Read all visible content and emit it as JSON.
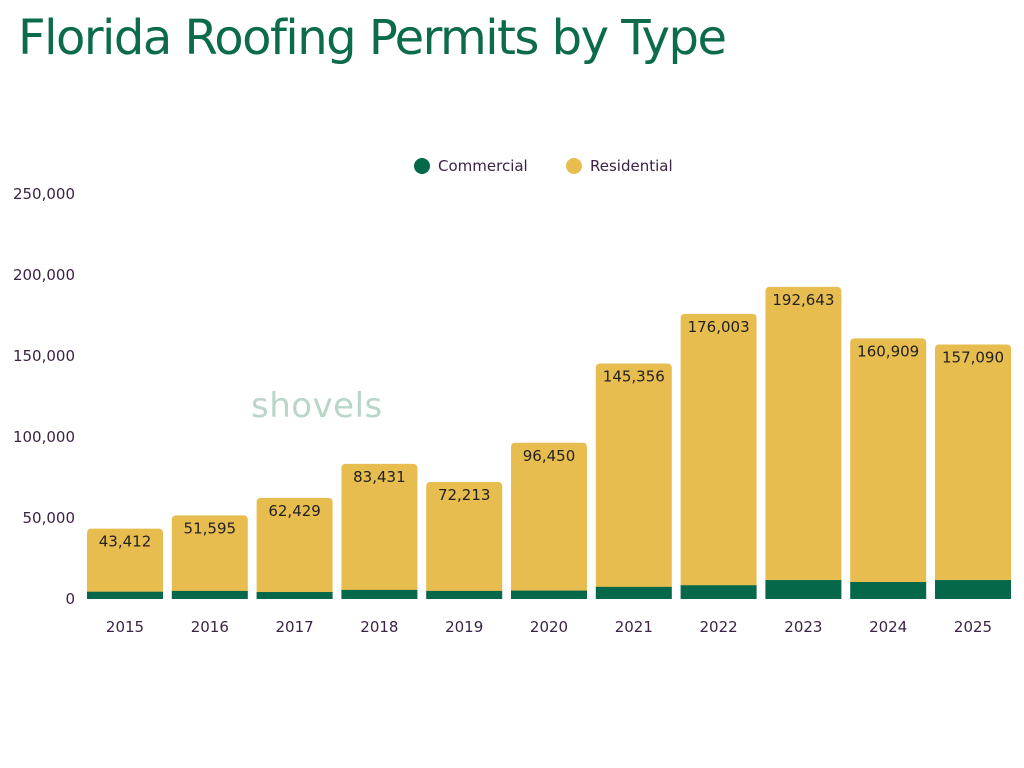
{
  "title": "Florida Roofing Permits by Type",
  "watermark": "shovels",
  "colors": {
    "commercial": "#05684a",
    "residential": "#e8bd50",
    "title": "#0b6b4b",
    "axis_text": "#3b2346",
    "watermark": "#b9d6c8"
  },
  "chart_data": {
    "type": "bar",
    "stacked": true,
    "categories": [
      "2015",
      "2016",
      "2017",
      "2018",
      "2019",
      "2020",
      "2021",
      "2022",
      "2023",
      "2024",
      "2025"
    ],
    "series": [
      {
        "name": "Commercial",
        "values": [
          4500,
          5000,
          4300,
          5600,
          5000,
          5200,
          7500,
          8500,
          11700,
          10500,
          11700
        ]
      },
      {
        "name": "Residential",
        "values": [
          38912,
          46595,
          58129,
          77831,
          67213,
          91250,
          137856,
          167503,
          180943,
          150409,
          145390
        ]
      }
    ],
    "totals_labels": [
      "43,412",
      "51,595",
      "62,429",
      "83,431",
      "72,213",
      "96,450",
      "145,356",
      "176,003",
      "192,643",
      "160,909",
      "157,090"
    ],
    "totals": [
      43412,
      51595,
      62429,
      83431,
      72213,
      96450,
      145356,
      176003,
      192643,
      160909,
      157090
    ],
    "y_ticks": [
      0,
      50000,
      100000,
      150000,
      200000,
      250000
    ],
    "y_tick_labels": [
      "0",
      "50,000",
      "100,000",
      "150,000",
      "200,000",
      "250,000"
    ],
    "ylim": [
      0,
      250000
    ],
    "grid": false,
    "legend_position": "top-center"
  }
}
